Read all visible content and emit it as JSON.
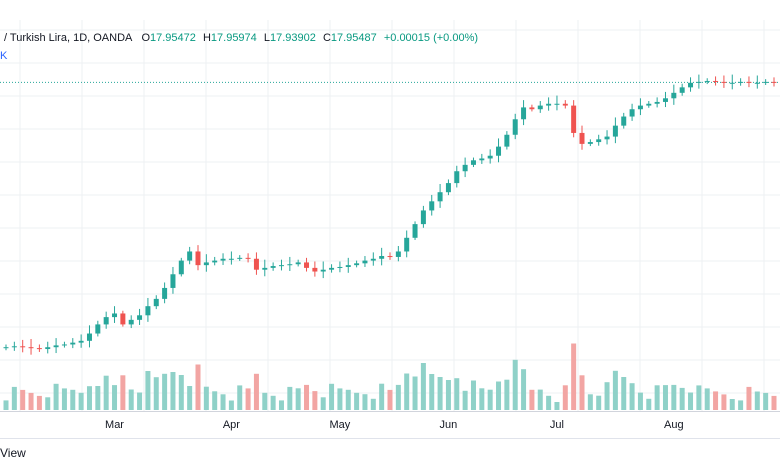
{
  "legend": {
    "symbol": "/ Turkish Lira, 1D, OANDA",
    "o_label": "O",
    "o_value": "17.95472",
    "h_label": "H",
    "h_value": "17.95974",
    "l_label": "L",
    "l_value": "17.93902",
    "c_label": "C",
    "c_value": "17.95487",
    "change": "+0.00015 (+0.00%)"
  },
  "legend_sub": "K",
  "footer": "View",
  "colors": {
    "up": "#26a69a",
    "down": "#ef5350",
    "volume_up": "#8fd1c8",
    "volume_down": "#f2a5a3",
    "grid": "#eef0f3",
    "last_price_line": "#26a69a"
  },
  "chart_data": {
    "type": "candlestick",
    "x_tick_labels": [
      "Mar",
      "Apr",
      "May",
      "Jun",
      "Jul",
      "Aug"
    ],
    "grid": true,
    "last_price": 17.95487,
    "ylim": [
      14.8,
      18.2
    ],
    "series": [
      {
        "name": "price",
        "approx_close_path": [
          15.05,
          15.06,
          15.05,
          15.04,
          15.03,
          15.05,
          15.07,
          15.08,
          15.1,
          15.12,
          15.2,
          15.3,
          15.38,
          15.42,
          15.3,
          15.35,
          15.4,
          15.5,
          15.58,
          15.7,
          15.85,
          16.0,
          16.1,
          15.95,
          15.98,
          16.0,
          16.02,
          16.02,
          16.03,
          16.02,
          15.9,
          15.92,
          15.94,
          15.95,
          15.96,
          15.98,
          15.92,
          15.88,
          15.9,
          15.92,
          15.93,
          15.95,
          15.97,
          16.0,
          16.02,
          16.05,
          16.04,
          16.1,
          16.25,
          16.4,
          16.55,
          16.65,
          16.75,
          16.85,
          16.98,
          17.05,
          17.1,
          17.12,
          17.15,
          17.25,
          17.38,
          17.55,
          17.68,
          17.66,
          17.7,
          17.72,
          17.72,
          17.7,
          17.4,
          17.28,
          17.3,
          17.33,
          17.36,
          17.48,
          17.58,
          17.66,
          17.7,
          17.72,
          17.74,
          17.78,
          17.84,
          17.9,
          17.95,
          17.96,
          17.97,
          17.96,
          17.95,
          17.95,
          17.96,
          17.95,
          17.95,
          17.96,
          17.95
        ]
      }
    ]
  }
}
